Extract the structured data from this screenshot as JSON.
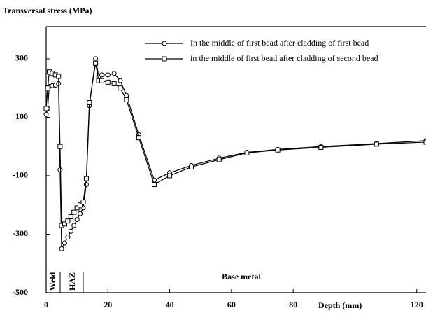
{
  "chart_data": {
    "type": "line",
    "ylabel": "Transversal stress (MPa)",
    "xlabel": "Depth (mm)",
    "annotations": [
      "Weld",
      "HAZ",
      "Base metal"
    ],
    "x": [
      0,
      0.5,
      1,
      2,
      3,
      4,
      4.5,
      5,
      6,
      7,
      8,
      9,
      10,
      11,
      12,
      13,
      14,
      16,
      17,
      18,
      20,
      22,
      24,
      26,
      30,
      35,
      40,
      47,
      56,
      65,
      75,
      89,
      107,
      123
    ],
    "series": [
      {
        "name": "In the middle of first bead after cladding of first bead",
        "color": "#000000",
        "marker": "circle",
        "values": [
          110,
          130,
          205,
          208,
          210,
          215,
          -80,
          -350,
          -330,
          -310,
          -290,
          -270,
          -250,
          -230,
          -210,
          -130,
          140,
          300,
          240,
          245,
          245,
          250,
          225,
          175,
          40,
          -115,
          -90,
          -65,
          -40,
          -20,
          -10,
          0,
          10,
          20
        ]
      },
      {
        "name": "in the middle of first bead after cladding of second bead",
        "color": "#000000",
        "marker": "square",
        "values": [
          130,
          200,
          255,
          250,
          245,
          240,
          0,
          -270,
          -265,
          -255,
          -240,
          -225,
          -210,
          -200,
          -190,
          -110,
          150,
          285,
          225,
          225,
          220,
          215,
          200,
          160,
          30,
          -130,
          -100,
          -70,
          -45,
          -22,
          -12,
          -3,
          8,
          15
        ]
      }
    ],
    "xlim": [
      0,
      123
    ],
    "xticks": [
      0,
      20,
      40,
      60,
      80,
      120
    ],
    "ylim": [
      -500,
      410
    ],
    "yticks": [
      -500,
      -300,
      -100,
      100,
      300
    ],
    "grid": false,
    "legend": "top-right"
  }
}
